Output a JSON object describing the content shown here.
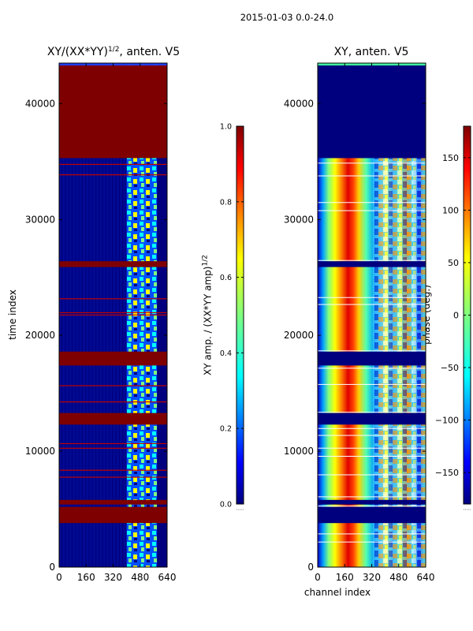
{
  "suptitle": "2015-01-03 0.0-24.0",
  "chart_data": [
    {
      "type": "heatmap",
      "title_main": "XY/(XX*YY)",
      "title_sup": "1/2",
      "title_tail": ", anten. V5",
      "xlabel": "",
      "ylabel": "time index",
      "xlim": [
        0,
        640
      ],
      "ylim": [
        0,
        43500
      ],
      "x_ticks": [
        0,
        160,
        320,
        480,
        640
      ],
      "y_ticks": [
        0,
        10000,
        20000,
        30000,
        40000
      ],
      "colormap": "jet",
      "colorbar": {
        "label_main": "XY amp. / (XX*YY amp)",
        "label_sup": "1/2",
        "range": [
          0.0,
          1.0
        ],
        "ticks": [
          "0.0",
          "0.2",
          "0.4",
          "0.6",
          "0.8",
          "1.0"
        ]
      },
      "saturated_time_bands": [
        [
          3800,
          5200
        ],
        [
          5400,
          5800
        ],
        [
          12300,
          13300
        ],
        [
          17400,
          18600
        ],
        [
          25900,
          26400
        ],
        [
          35300,
          43300
        ]
      ],
      "thin_flagged_times": [
        7800,
        8400,
        10300,
        10700,
        14300,
        15700,
        21800,
        22000,
        23200,
        33900,
        34800
      ],
      "active_channel_band": [
        400,
        580
      ]
    },
    {
      "type": "heatmap",
      "title_main": "XY, anten. V5",
      "xlabel": "channel index",
      "ylabel": "",
      "xlim": [
        0,
        640
      ],
      "ylim": [
        0,
        43500
      ],
      "x_ticks": [
        0,
        160,
        320,
        480,
        640
      ],
      "y_ticks": [
        0,
        10000,
        20000,
        30000,
        40000
      ],
      "colormap": "jet",
      "colorbar": {
        "label": "phase (deg.)",
        "range": [
          -180,
          180
        ],
        "ticks": [
          "150",
          "100",
          "50",
          "0",
          "−50",
          "−100",
          "−150"
        ]
      },
      "blank_time_bands": [
        [
          3800,
          5200
        ],
        [
          5400,
          5800
        ],
        [
          12300,
          13300
        ],
        [
          17400,
          18600
        ],
        [
          25900,
          26400
        ],
        [
          35300,
          43300
        ]
      ]
    }
  ],
  "colors": {
    "jet": [
      "#00007f",
      "#0000ff",
      "#007fff",
      "#00ffff",
      "#7fff7f",
      "#ffff00",
      "#ff7f00",
      "#ff0000",
      "#7f0000"
    ]
  }
}
